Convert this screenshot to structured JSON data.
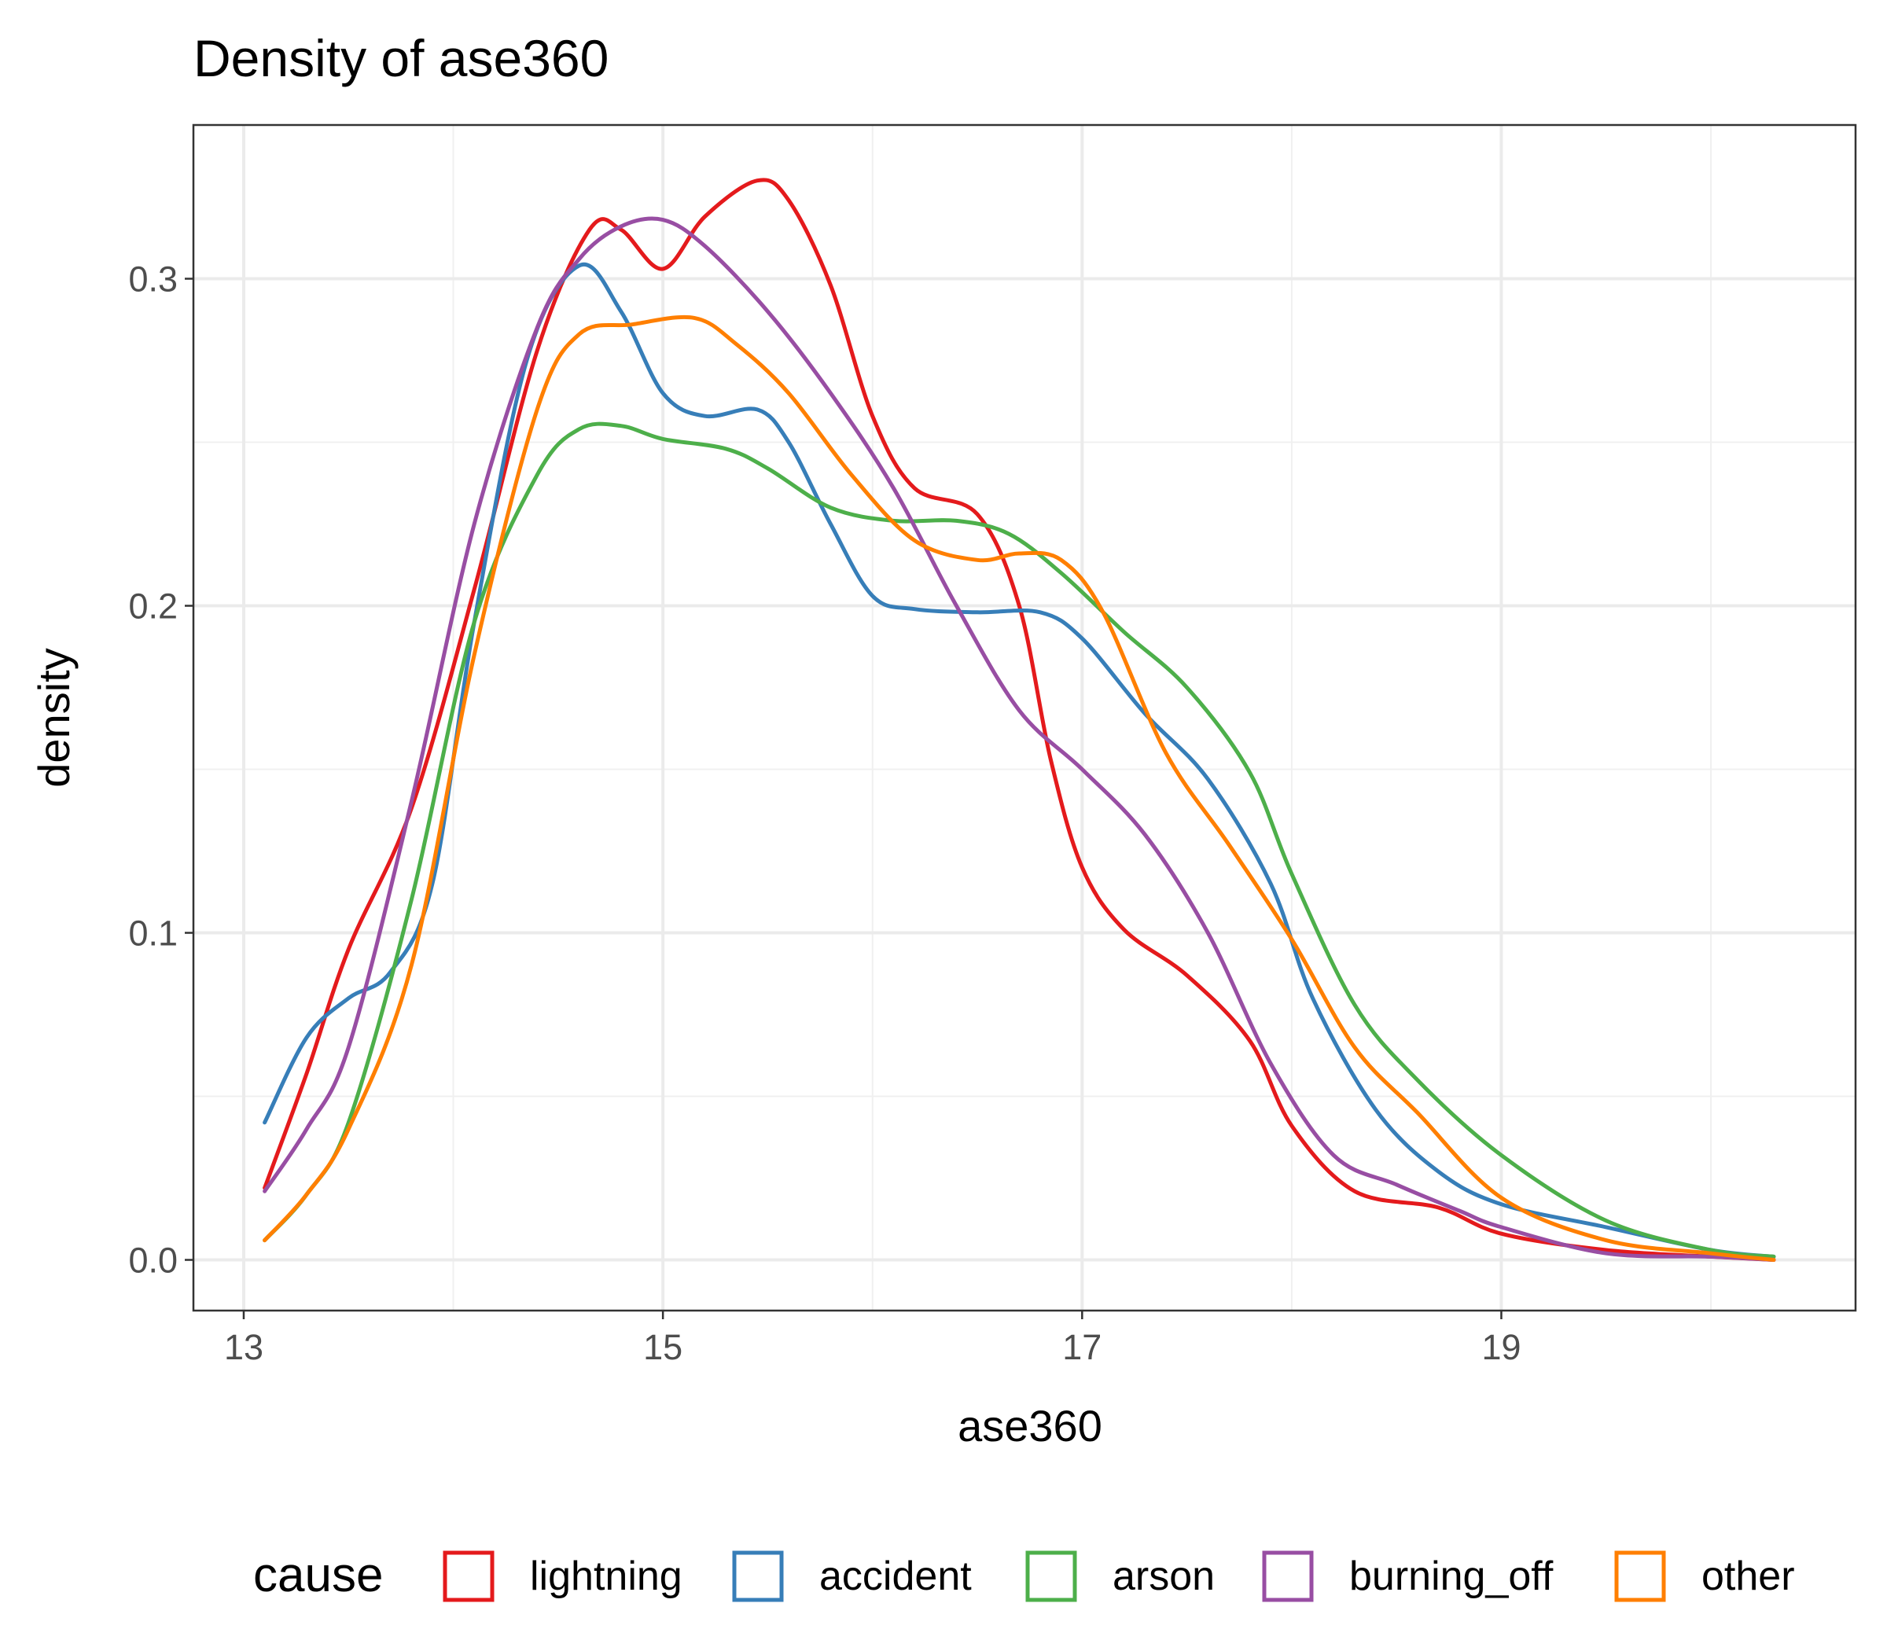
{
  "chart_data": {
    "type": "line",
    "title": "Density of ase360",
    "xlabel": "ase360",
    "ylabel": "density",
    "xlim": [
      12.76,
      20.69
    ],
    "ylim": [
      -0.0155,
      0.347
    ],
    "x_ticks": [
      "13",
      "15",
      "17",
      "19"
    ],
    "y_ticks": [
      "0.0",
      "0.1",
      "0.2",
      "0.3"
    ],
    "grid": true,
    "legend": {
      "title": "cause",
      "position": "bottom",
      "entries": [
        "lightning",
        "accident",
        "arson",
        "burning_off",
        "other"
      ]
    },
    "series": [
      {
        "name": "lightning",
        "color": "#e41a1c",
        "x": [
          13.1,
          13.3,
          13.5,
          13.8,
          14.1,
          14.4,
          14.65,
          14.8,
          15.0,
          15.2,
          15.45,
          15.6,
          15.8,
          16.0,
          16.2,
          16.5,
          16.7,
          16.85,
          17.0,
          17.2,
          17.5,
          17.8,
          18.0,
          18.3,
          18.7,
          19.0,
          19.5,
          20.0,
          20.3
        ],
        "y": [
          0.022,
          0.057,
          0.095,
          0.138,
          0.205,
          0.278,
          0.315,
          0.315,
          0.303,
          0.319,
          0.33,
          0.324,
          0.298,
          0.258,
          0.236,
          0.228,
          0.2,
          0.153,
          0.12,
          0.101,
          0.087,
          0.067,
          0.041,
          0.021,
          0.016,
          0.008,
          0.003,
          0.001,
          0.0
        ]
      },
      {
        "name": "accident",
        "color": "#377eb8",
        "x": [
          13.1,
          13.3,
          13.5,
          13.7,
          13.9,
          14.1,
          14.35,
          14.6,
          14.8,
          15.0,
          15.2,
          15.45,
          15.6,
          15.8,
          16.0,
          16.2,
          16.5,
          16.8,
          17.0,
          17.3,
          17.6,
          17.9,
          18.1,
          18.4,
          18.7,
          19.0,
          19.5,
          20.0,
          20.3
        ],
        "y": [
          0.042,
          0.068,
          0.08,
          0.088,
          0.115,
          0.195,
          0.275,
          0.304,
          0.29,
          0.265,
          0.258,
          0.26,
          0.25,
          0.225,
          0.203,
          0.199,
          0.198,
          0.198,
          0.19,
          0.167,
          0.147,
          0.115,
          0.08,
          0.046,
          0.027,
          0.017,
          0.01,
          0.003,
          0.001
        ]
      },
      {
        "name": "arson",
        "color": "#4daf4a",
        "x": [
          13.1,
          13.3,
          13.5,
          13.8,
          14.1,
          14.4,
          14.6,
          14.8,
          15.0,
          15.3,
          15.5,
          15.8,
          16.1,
          16.4,
          16.65,
          16.9,
          17.2,
          17.5,
          17.8,
          18.0,
          18.3,
          18.6,
          19.0,
          19.5,
          20.0,
          20.3
        ],
        "y": [
          0.006,
          0.02,
          0.042,
          0.11,
          0.195,
          0.24,
          0.254,
          0.255,
          0.251,
          0.248,
          0.242,
          0.23,
          0.226,
          0.226,
          0.222,
          0.21,
          0.192,
          0.175,
          0.149,
          0.118,
          0.078,
          0.055,
          0.032,
          0.012,
          0.003,
          0.001
        ]
      },
      {
        "name": "burning_off",
        "color": "#984ea3",
        "x": [
          13.1,
          13.3,
          13.5,
          13.8,
          14.1,
          14.4,
          14.6,
          14.8,
          15.0,
          15.2,
          15.5,
          15.8,
          16.1,
          16.4,
          16.7,
          17.0,
          17.3,
          17.6,
          17.9,
          18.2,
          18.5,
          18.8,
          19.0,
          19.5,
          20.0,
          20.3
        ],
        "y": [
          0.021,
          0.04,
          0.065,
          0.14,
          0.225,
          0.285,
          0.306,
          0.316,
          0.318,
          0.31,
          0.29,
          0.265,
          0.236,
          0.2,
          0.168,
          0.15,
          0.13,
          0.1,
          0.06,
          0.032,
          0.023,
          0.015,
          0.01,
          0.002,
          0.001,
          0.0
        ]
      },
      {
        "name": "other",
        "color": "#ff7f00",
        "x": [
          13.1,
          13.3,
          13.5,
          13.8,
          14.1,
          14.4,
          14.6,
          14.85,
          15.15,
          15.35,
          15.6,
          15.9,
          16.2,
          16.5,
          16.7,
          16.9,
          17.1,
          17.4,
          17.7,
          18.0,
          18.3,
          18.6,
          19.0,
          19.5,
          20.0,
          20.3
        ],
        "y": [
          0.006,
          0.02,
          0.04,
          0.09,
          0.185,
          0.26,
          0.283,
          0.286,
          0.288,
          0.28,
          0.265,
          0.24,
          0.22,
          0.214,
          0.216,
          0.214,
          0.198,
          0.155,
          0.127,
          0.098,
          0.065,
          0.045,
          0.019,
          0.006,
          0.002,
          0.0
        ]
      }
    ]
  }
}
